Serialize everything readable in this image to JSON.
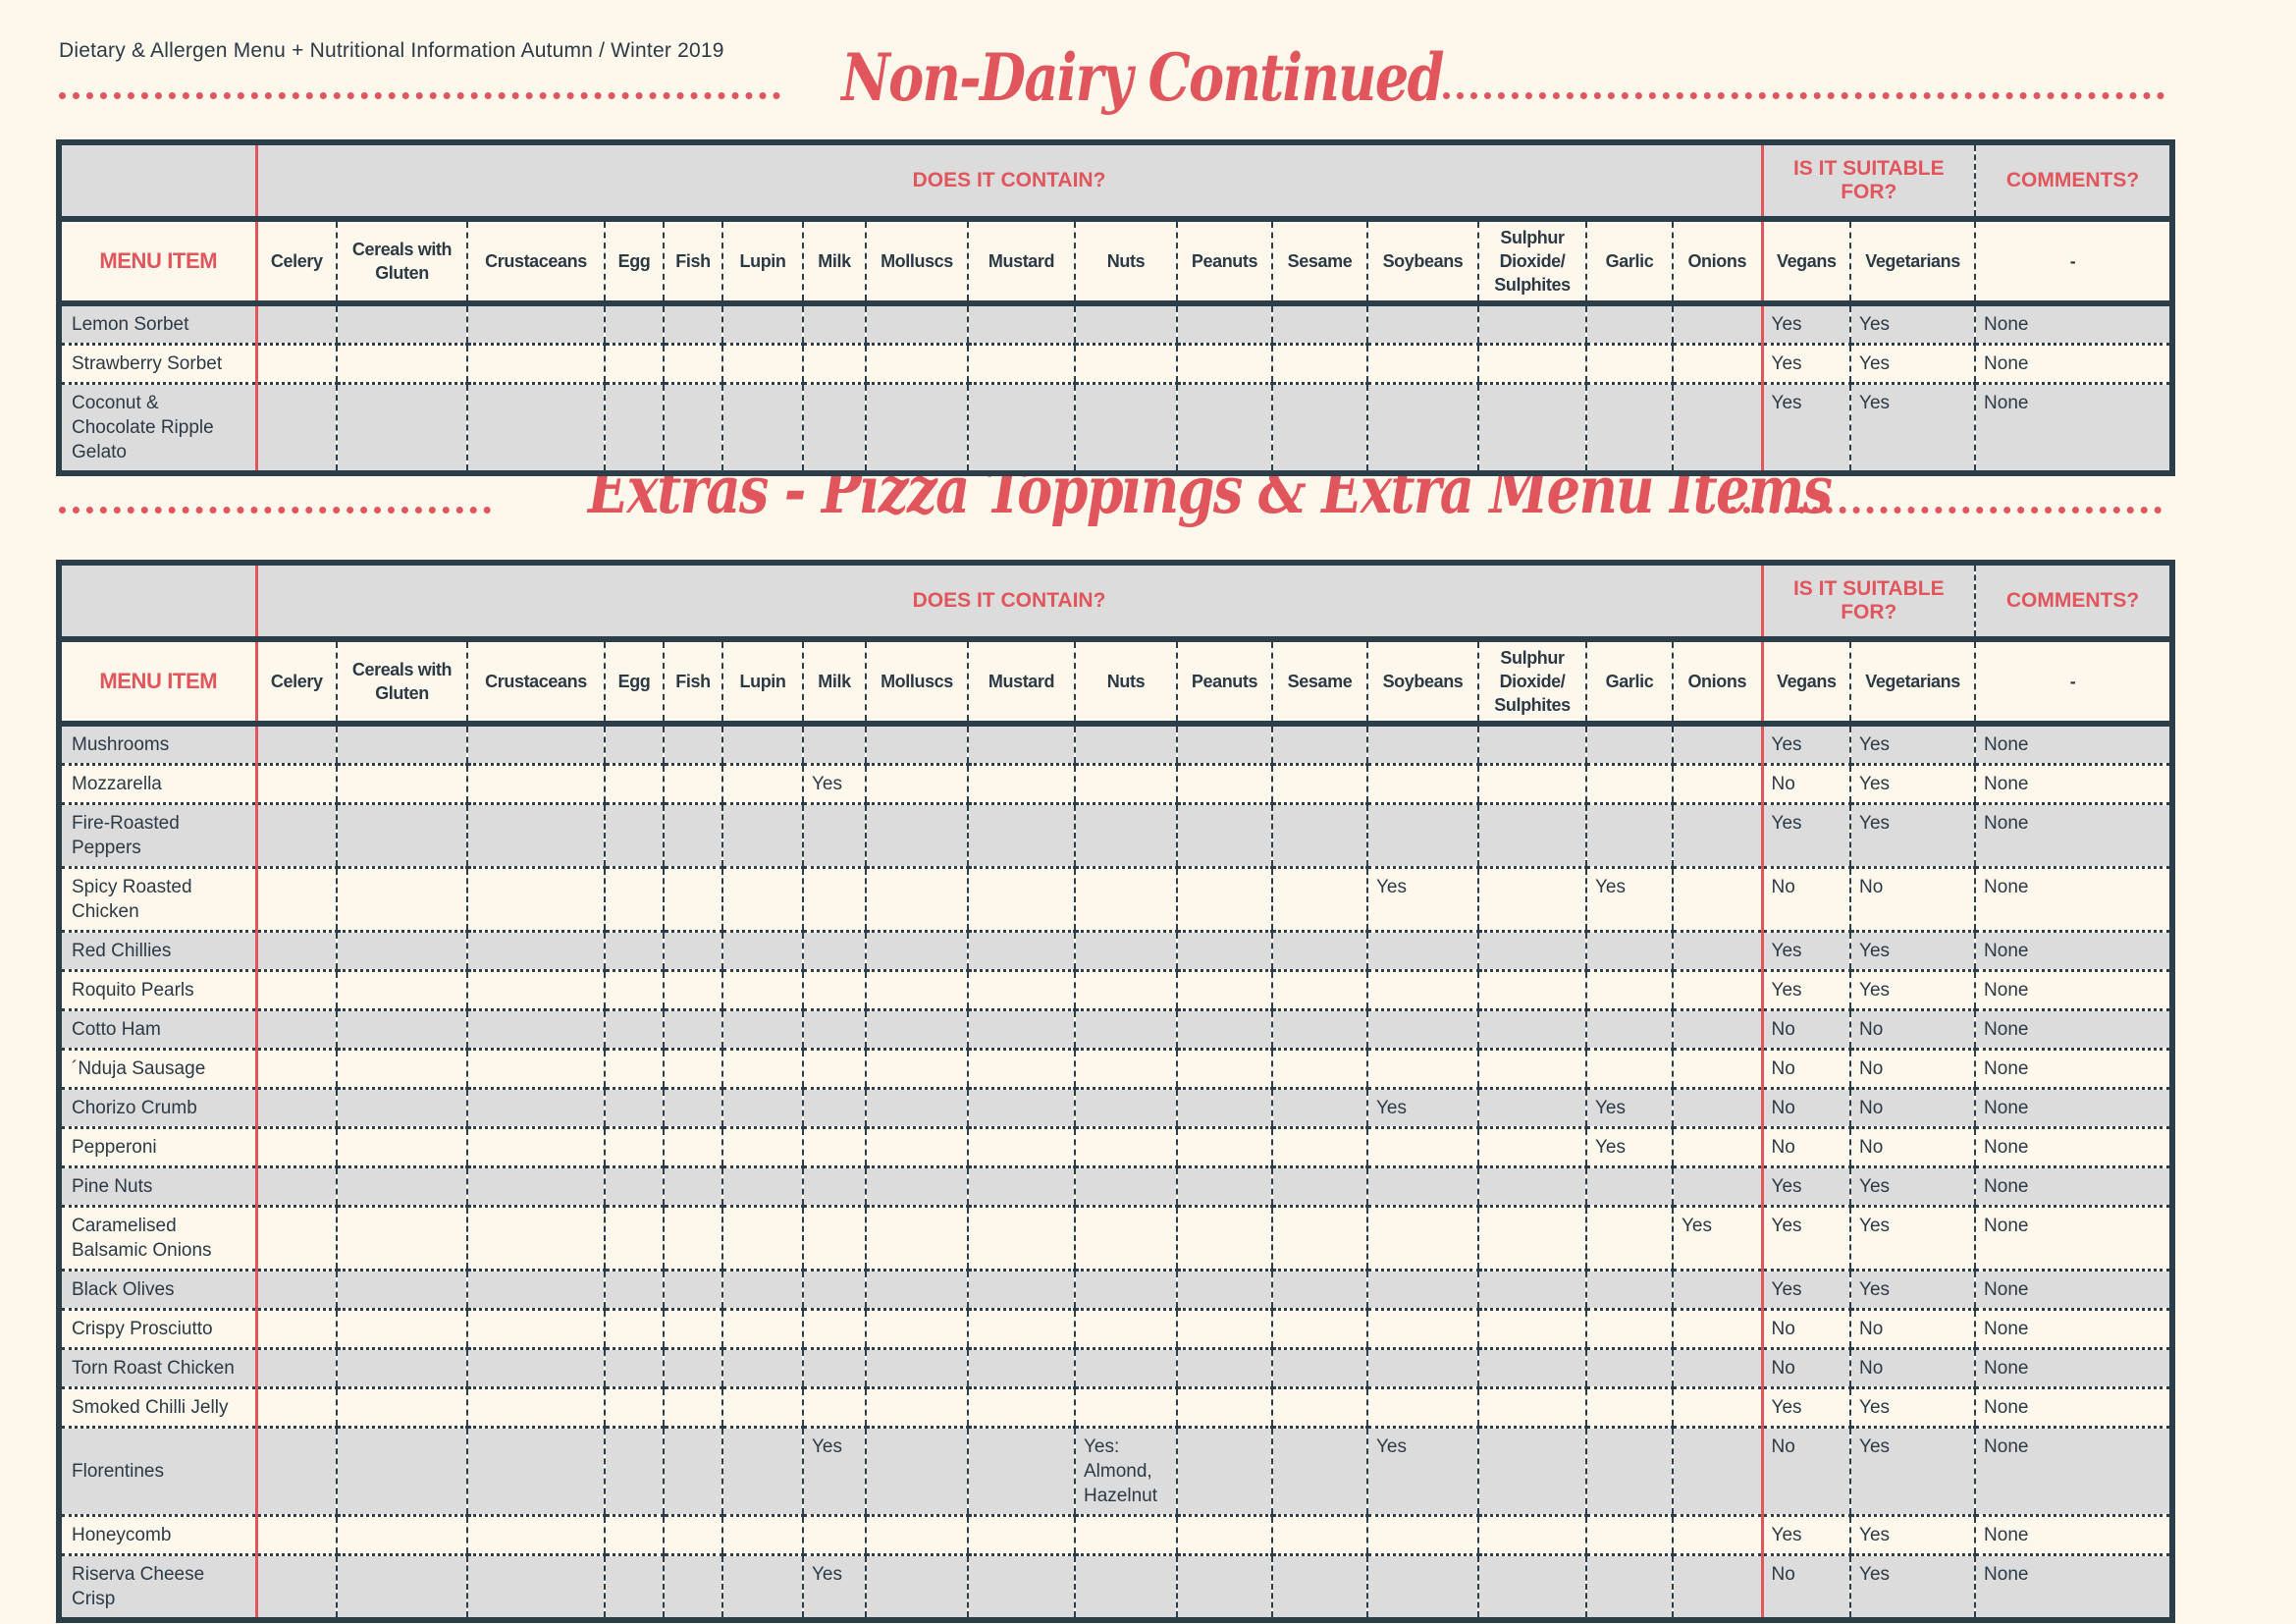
{
  "header": {
    "title": "Dietary & Allergen Menu + Nutritional Information Autumn / Winter 2019"
  },
  "colors": {
    "accent": "#e0565c",
    "dark": "#2c3e4a",
    "row_grey": "#dcdcdc",
    "background": "#fdf7ec"
  },
  "columns": {
    "menu_item": "MENU ITEM",
    "group_contains": "DOES IT CONTAIN?",
    "group_suitable": "IS IT SUITABLE FOR?",
    "group_comments": "COMMENTS?",
    "allergens": [
      "Celery",
      "Cereals with Gluten",
      "Crustaceans",
      "Egg",
      "Fish",
      "Lupin",
      "Milk",
      "Molluscs",
      "Mustard",
      "Nuts",
      "Peanuts",
      "Sesame",
      "Soybeans",
      "Sulphur Dioxide/ Sulphites",
      "Garlic",
      "Onions"
    ],
    "vegans": "Vegans",
    "vegetarians": "Vegetarians",
    "comments": "-"
  },
  "sections": [
    {
      "title": "Non-Dairy Continued",
      "rows": [
        {
          "item": "Lemon Sorbet",
          "contains": {},
          "vegans": "Yes",
          "vegetarians": "Yes",
          "comments": "None"
        },
        {
          "item": "Strawberry Sorbet",
          "contains": {},
          "vegans": "Yes",
          "vegetarians": "Yes",
          "comments": "None"
        },
        {
          "item": "Coconut & Chocolate Ripple Gelato",
          "contains": {},
          "vegans": "Yes",
          "vegetarians": "Yes",
          "comments": "None"
        }
      ]
    },
    {
      "title": "Extras - Pizza Toppings & Extra Menu Items",
      "rows": [
        {
          "item": "Mushrooms",
          "contains": {},
          "vegans": "Yes",
          "vegetarians": "Yes",
          "comments": "None"
        },
        {
          "item": "Mozzarella",
          "contains": {
            "Milk": "Yes"
          },
          "vegans": "No",
          "vegetarians": "Yes",
          "comments": "None"
        },
        {
          "item": "Fire-Roasted Peppers",
          "contains": {},
          "vegans": "Yes",
          "vegetarians": "Yes",
          "comments": "None"
        },
        {
          "item": "Spicy Roasted Chicken",
          "contains": {
            "Soybeans": "Yes",
            "Garlic": "Yes"
          },
          "vegans": "No",
          "vegetarians": "No",
          "comments": "None"
        },
        {
          "item": "Red Chillies",
          "contains": {},
          "vegans": "Yes",
          "vegetarians": "Yes",
          "comments": "None"
        },
        {
          "item": "Roquito Pearls",
          "contains": {},
          "vegans": "Yes",
          "vegetarians": "Yes",
          "comments": "None"
        },
        {
          "item": "Cotto Ham",
          "contains": {},
          "vegans": "No",
          "vegetarians": "No",
          "comments": "None"
        },
        {
          "item": "´Nduja Sausage",
          "contains": {},
          "vegans": "No",
          "vegetarians": "No",
          "comments": "None"
        },
        {
          "item": "Chorizo Crumb",
          "contains": {
            "Soybeans": "Yes",
            "Garlic": "Yes"
          },
          "vegans": "No",
          "vegetarians": "No",
          "comments": "None"
        },
        {
          "item": "Pepperoni",
          "contains": {
            "Garlic": "Yes"
          },
          "vegans": "No",
          "vegetarians": "No",
          "comments": "None"
        },
        {
          "item": "Pine Nuts",
          "contains": {},
          "vegans": "Yes",
          "vegetarians": "Yes",
          "comments": "None"
        },
        {
          "item": "Caramelised Balsamic Onions",
          "contains": {
            "Onions": "Yes"
          },
          "vegans": "Yes",
          "vegetarians": "Yes",
          "comments": "None"
        },
        {
          "item": "Black Olives",
          "contains": {},
          "vegans": "Yes",
          "vegetarians": "Yes",
          "comments": "None"
        },
        {
          "item": "Crispy Prosciutto",
          "contains": {},
          "vegans": "No",
          "vegetarians": "No",
          "comments": "None"
        },
        {
          "item": "Torn Roast Chicken",
          "contains": {},
          "vegans": "No",
          "vegetarians": "No",
          "comments": "None"
        },
        {
          "item": "Smoked Chilli Jelly",
          "contains": {},
          "vegans": "Yes",
          "vegetarians": "Yes",
          "comments": "None"
        },
        {
          "item": "Florentines",
          "contains": {
            "Milk": "Yes",
            "Nuts": "Yes: Almond, Hazelnut",
            "Soybeans": "Yes"
          },
          "vegans": "No",
          "vegetarians": "Yes",
          "comments": "None"
        },
        {
          "item": "Honeycomb",
          "contains": {},
          "vegans": "Yes",
          "vegetarians": "Yes",
          "comments": "None"
        },
        {
          "item": "Riserva Cheese Crisp",
          "contains": {
            "Milk": "Yes"
          },
          "vegans": "No",
          "vegetarians": "Yes",
          "comments": "None"
        }
      ]
    }
  ]
}
